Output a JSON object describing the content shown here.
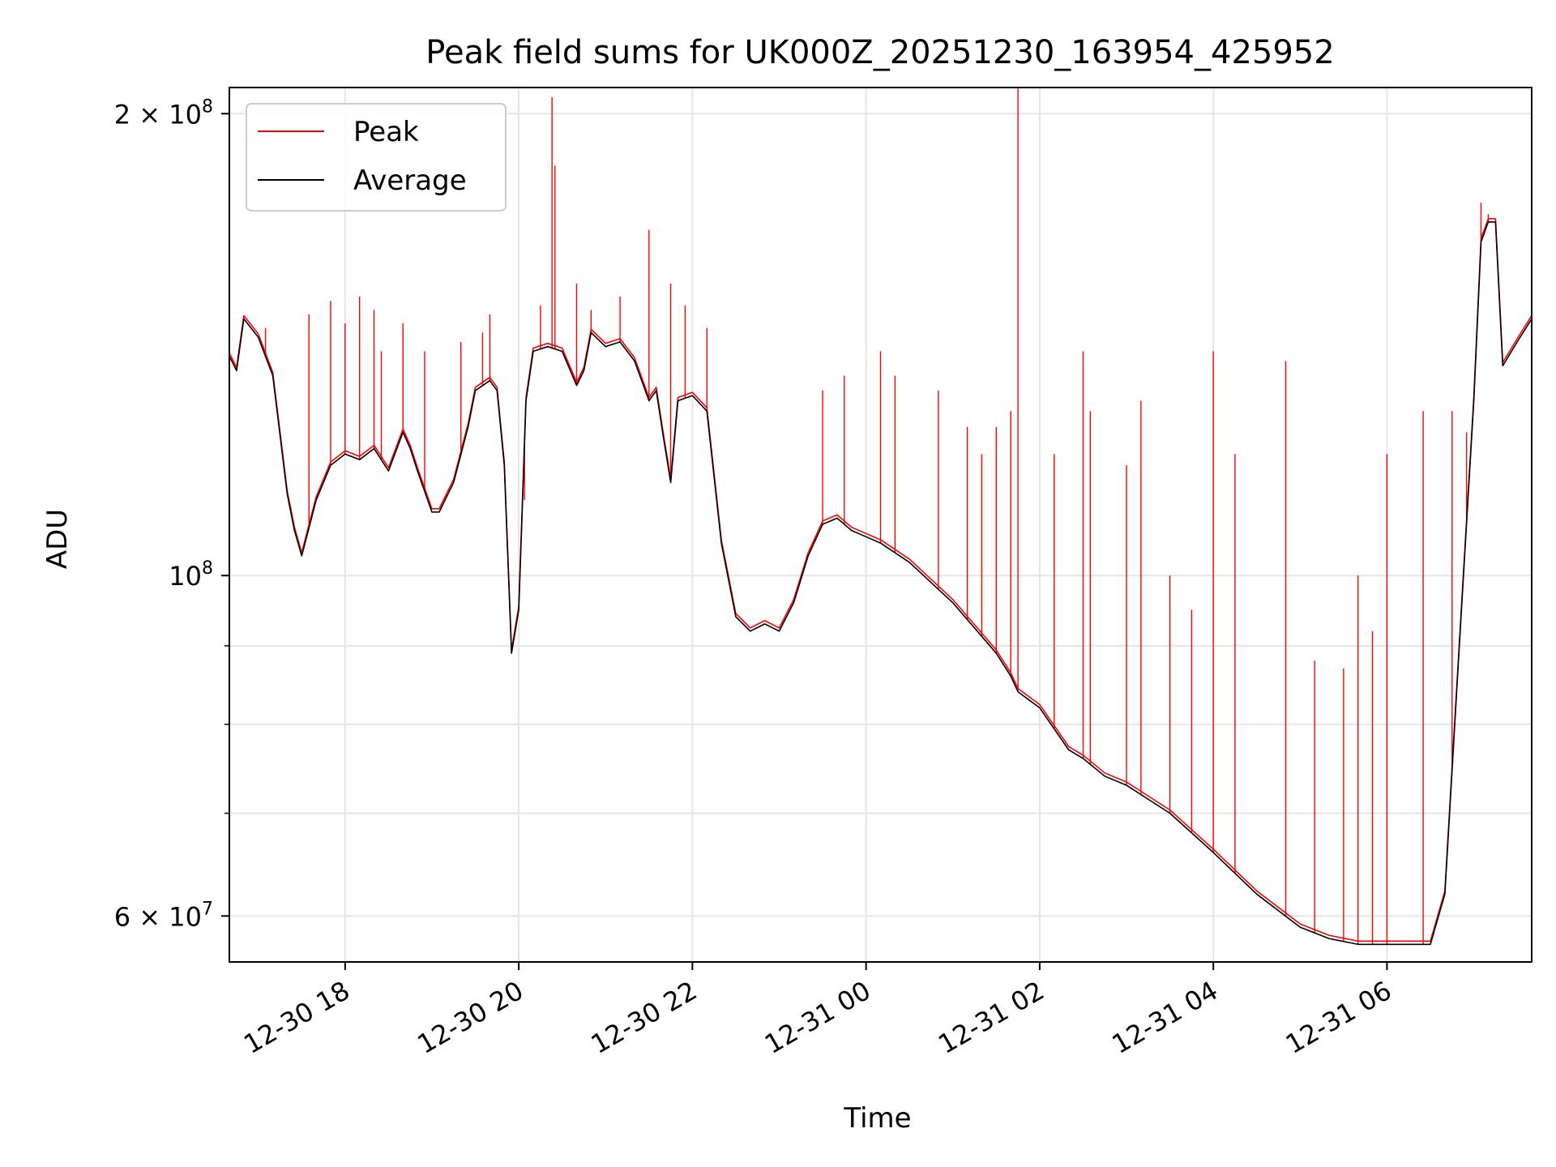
{
  "chart_data": {
    "type": "line",
    "title": "Peak field sums for UK000Z_20251230_163954_425952",
    "xlabel": "Time",
    "ylabel": "ADU",
    "yscale": "log",
    "xlim": [
      "2025-12-30 16:40",
      "2025-12-31 07:40"
    ],
    "ylim": [
      56000000,
      208000000
    ],
    "grid": true,
    "legend_position": "upper-left",
    "x_ticks": [
      {
        "value": "2025-12-30 18:00",
        "label": "12-30 18"
      },
      {
        "value": "2025-12-30 20:00",
        "label": "12-30 20"
      },
      {
        "value": "2025-12-30 22:00",
        "label": "12-30 22"
      },
      {
        "value": "2025-12-31 00:00",
        "label": "12-31 00"
      },
      {
        "value": "2025-12-31 02:00",
        "label": "12-31 02"
      },
      {
        "value": "2025-12-31 04:00",
        "label": "12-31 04"
      },
      {
        "value": "2025-12-31 06:00",
        "label": "12-31 06"
      }
    ],
    "y_major_ticks": [
      {
        "value": 60000000,
        "base": "6 × 10",
        "exp": "7"
      },
      {
        "value": 100000000,
        "base": "10",
        "exp": "8"
      },
      {
        "value": 200000000,
        "base": "2 × 10",
        "exp": "8"
      }
    ],
    "y_minor_gridlines": [
      70000000,
      80000000,
      90000000
    ],
    "series": [
      {
        "name": "Average",
        "color": "#000000",
        "x": [
          "2025-12-30 16:40",
          "2025-12-30 16:45",
          "2025-12-30 16:50",
          "2025-12-30 17:00",
          "2025-12-30 17:10",
          "2025-12-30 17:20",
          "2025-12-30 17:25",
          "2025-12-30 17:30",
          "2025-12-30 17:40",
          "2025-12-30 17:50",
          "2025-12-30 18:00",
          "2025-12-30 18:10",
          "2025-12-30 18:20",
          "2025-12-30 18:30",
          "2025-12-30 18:40",
          "2025-12-30 18:45",
          "2025-12-30 18:50",
          "2025-12-30 19:00",
          "2025-12-30 19:05",
          "2025-12-30 19:15",
          "2025-12-30 19:25",
          "2025-12-30 19:30",
          "2025-12-30 19:40",
          "2025-12-30 19:45",
          "2025-12-30 19:50",
          "2025-12-30 19:55",
          "2025-12-30 20:00",
          "2025-12-30 20:05",
          "2025-12-30 20:10",
          "2025-12-30 20:20",
          "2025-12-30 20:30",
          "2025-12-30 20:40",
          "2025-12-30 20:45",
          "2025-12-30 20:50",
          "2025-12-30 21:00",
          "2025-12-30 21:10",
          "2025-12-30 21:20",
          "2025-12-30 21:30",
          "2025-12-30 21:35",
          "2025-12-30 21:40",
          "2025-12-30 21:45",
          "2025-12-30 21:50",
          "2025-12-30 22:00",
          "2025-12-30 22:10",
          "2025-12-30 22:20",
          "2025-12-30 22:30",
          "2025-12-30 22:40",
          "2025-12-30 22:50",
          "2025-12-30 23:00",
          "2025-12-30 23:10",
          "2025-12-30 23:20",
          "2025-12-30 23:30",
          "2025-12-30 23:40",
          "2025-12-30 23:50",
          "2025-12-31 00:00",
          "2025-12-31 00:10",
          "2025-12-31 00:30",
          "2025-12-31 01:00",
          "2025-12-31 01:30",
          "2025-12-31 01:40",
          "2025-12-31 01:45",
          "2025-12-31 02:00",
          "2025-12-31 02:20",
          "2025-12-31 02:30",
          "2025-12-31 02:45",
          "2025-12-31 03:00",
          "2025-12-31 03:30",
          "2025-12-31 04:00",
          "2025-12-31 04:30",
          "2025-12-31 05:00",
          "2025-12-31 05:20",
          "2025-12-31 05:40",
          "2025-12-31 06:00",
          "2025-12-31 06:20",
          "2025-12-31 06:30",
          "2025-12-31 06:40",
          "2025-12-31 06:50",
          "2025-12-31 07:00",
          "2025-12-31 07:05",
          "2025-12-31 07:10",
          "2025-12-31 07:15",
          "2025-12-31 07:20",
          "2025-12-31 07:30",
          "2025-12-31 07:40"
        ],
        "y": [
          139000000,
          136000000,
          147000000,
          143000000,
          135000000,
          113000000,
          107000000,
          103000000,
          112000000,
          118000000,
          120000000,
          119000000,
          121000000,
          117000000,
          124000000,
          121000000,
          117000000,
          110000000,
          110000000,
          115000000,
          125000000,
          132000000,
          134000000,
          132000000,
          118000000,
          89000000,
          95000000,
          130000000,
          140000000,
          141000000,
          140000000,
          133000000,
          136000000,
          144000000,
          141000000,
          142000000,
          138000000,
          130000000,
          132000000,
          123000000,
          115000000,
          130000000,
          131000000,
          128000000,
          105000000,
          94000000,
          92000000,
          93000000,
          92000000,
          96000000,
          103000000,
          108000000,
          109000000,
          107000000,
          106000000,
          105000000,
          102000000,
          96000000,
          89000000,
          86000000,
          84000000,
          82000000,
          77000000,
          76000000,
          74000000,
          73000000,
          70000000,
          66000000,
          62000000,
          59000000,
          58000000,
          57500000,
          57500000,
          57500000,
          57500000,
          62000000,
          90000000,
          130000000,
          165000000,
          170000000,
          170000000,
          137000000,
          142000000,
          147000000
        ]
      },
      {
        "name": "Peak",
        "color": "#ff0000",
        "spikes": [
          [
            "2025-12-30 17:05",
            145000000
          ],
          [
            "2025-12-30 17:35",
            148000000
          ],
          [
            "2025-12-30 17:50",
            151000000
          ],
          [
            "2025-12-30 18:00",
            146000000
          ],
          [
            "2025-12-30 18:10",
            152000000
          ],
          [
            "2025-12-30 18:20",
            149000000
          ],
          [
            "2025-12-30 18:25",
            140000000
          ],
          [
            "2025-12-30 18:40",
            146000000
          ],
          [
            "2025-12-30 18:55",
            140000000
          ],
          [
            "2025-12-30 19:20",
            142000000
          ],
          [
            "2025-12-30 19:35",
            144000000
          ],
          [
            "2025-12-30 19:40",
            148000000
          ],
          [
            "2025-12-30 20:04",
            112000000
          ],
          [
            "2025-12-30 20:15",
            150000000
          ],
          [
            "2025-12-30 20:23",
            205000000
          ],
          [
            "2025-12-30 20:25",
            185000000
          ],
          [
            "2025-12-30 20:40",
            155000000
          ],
          [
            "2025-12-30 20:50",
            149000000
          ],
          [
            "2025-12-30 21:10",
            152000000
          ],
          [
            "2025-12-30 21:30",
            168000000
          ],
          [
            "2025-12-30 21:45",
            155000000
          ],
          [
            "2025-12-30 21:55",
            150000000
          ],
          [
            "2025-12-30 22:10",
            145000000
          ],
          [
            "2025-12-30 23:30",
            132000000
          ],
          [
            "2025-12-30 23:45",
            135000000
          ],
          [
            "2025-12-31 00:10",
            140000000
          ],
          [
            "2025-12-31 00:20",
            135000000
          ],
          [
            "2025-12-31 00:50",
            132000000
          ],
          [
            "2025-12-31 01:10",
            125000000
          ],
          [
            "2025-12-31 01:20",
            120000000
          ],
          [
            "2025-12-31 01:30",
            125000000
          ],
          [
            "2025-12-31 01:40",
            128000000
          ],
          [
            "2025-12-31 01:45",
            210000000
          ],
          [
            "2025-12-31 02:10",
            120000000
          ],
          [
            "2025-12-31 02:30",
            140000000
          ],
          [
            "2025-12-31 02:35",
            128000000
          ],
          [
            "2025-12-31 03:00",
            118000000
          ],
          [
            "2025-12-31 03:10",
            130000000
          ],
          [
            "2025-12-31 03:30",
            100000000
          ],
          [
            "2025-12-31 03:45",
            95000000
          ],
          [
            "2025-12-31 04:00",
            140000000
          ],
          [
            "2025-12-31 04:15",
            120000000
          ],
          [
            "2025-12-31 04:50",
            138000000
          ],
          [
            "2025-12-31 05:10",
            88000000
          ],
          [
            "2025-12-31 05:30",
            87000000
          ],
          [
            "2025-12-31 05:40",
            100000000
          ],
          [
            "2025-12-31 05:50",
            92000000
          ],
          [
            "2025-12-31 06:00",
            120000000
          ],
          [
            "2025-12-31 06:25",
            128000000
          ],
          [
            "2025-12-31 06:45",
            128000000
          ],
          [
            "2025-12-31 06:55",
            124000000
          ],
          [
            "2025-12-31 07:05",
            175000000
          ],
          [
            "2025-12-31 07:10",
            172000000
          ]
        ]
      }
    ]
  }
}
